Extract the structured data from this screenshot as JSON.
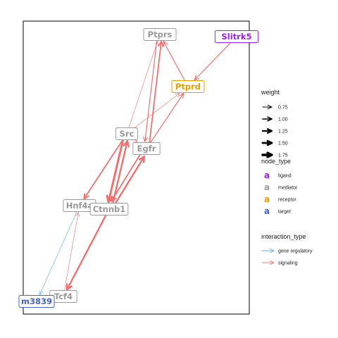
{
  "colors": {
    "ligand": "#A020F0",
    "mediator": "#999999",
    "receptor": "#E69F00",
    "target": "#4763C8",
    "gene_regulatory": "#56A8E0",
    "signaling": "#F07070",
    "panel_border": "#000000"
  },
  "nodes": [
    {
      "id": "Ptprs",
      "label": "Ptprs",
      "type": "mediator"
    },
    {
      "id": "Slitrk5",
      "label": "Slitrk5",
      "type": "ligand"
    },
    {
      "id": "Ptprd",
      "label": "Ptprd",
      "type": "receptor"
    },
    {
      "id": "Src",
      "label": "Src",
      "type": "mediator"
    },
    {
      "id": "Egfr",
      "label": "Egfr",
      "type": "mediator"
    },
    {
      "id": "Hnf4a",
      "label": "Hnf4a",
      "type": "mediator"
    },
    {
      "id": "Ctnnb1",
      "label": "Ctnnb1",
      "type": "mediator"
    },
    {
      "id": "Tcf4",
      "label": "Tcf4",
      "type": "mediator"
    },
    {
      "id": "Gm3839",
      "label": "m3839",
      "type": "target"
    }
  ],
  "edges": [
    {
      "from": "Slitrk5",
      "to": "Ptprd",
      "interaction_type": "signaling",
      "weight": 1.0
    },
    {
      "from": "Ptprd",
      "to": "Ptprs",
      "interaction_type": "signaling",
      "weight": 1.0
    },
    {
      "from": "Src",
      "to": "Ptprs",
      "interaction_type": "signaling",
      "weight": 0.75
    },
    {
      "from": "Egfr",
      "to": "Ptprs",
      "interaction_type": "signaling",
      "weight": 1.25
    },
    {
      "from": "Ptprs",
      "to": "Egfr",
      "interaction_type": "signaling",
      "weight": 1.0
    },
    {
      "from": "Src",
      "to": "Ptprd",
      "interaction_type": "signaling",
      "weight": 0.75
    },
    {
      "from": "Egfr",
      "to": "Ptprd",
      "interaction_type": "signaling",
      "weight": 1.0
    },
    {
      "from": "Src",
      "to": "Egfr",
      "interaction_type": "signaling",
      "weight": 0.75
    },
    {
      "from": "Src",
      "to": "Hnf4a",
      "interaction_type": "signaling",
      "weight": 1.25
    },
    {
      "from": "Src",
      "to": "Ctnnb1",
      "interaction_type": "signaling",
      "weight": 1.75
    },
    {
      "from": "Ctnnb1",
      "to": "Src",
      "interaction_type": "signaling",
      "weight": 1.5
    },
    {
      "from": "Ctnnb1",
      "to": "Egfr",
      "interaction_type": "signaling",
      "weight": 1.5
    },
    {
      "from": "Egfr",
      "to": "Ctnnb1",
      "interaction_type": "signaling",
      "weight": 1.25
    },
    {
      "from": "Ctnnb1",
      "to": "Tcf4",
      "interaction_type": "signaling",
      "weight": 1.5
    },
    {
      "from": "Tcf4",
      "to": "Hnf4a",
      "interaction_type": "signaling",
      "weight": 0.75
    },
    {
      "from": "Hnf4a",
      "to": "Gm3839",
      "interaction_type": "gene_regulatory",
      "weight": 0.75
    }
  ],
  "legend": {
    "weight": {
      "title": "weight",
      "items": [
        {
          "label": "0.75",
          "value": 0.75
        },
        {
          "label": "1.00",
          "value": 1.0
        },
        {
          "label": "1.25",
          "value": 1.25
        },
        {
          "label": "1.50",
          "value": 1.5
        },
        {
          "label": "1.75",
          "value": 1.75
        }
      ]
    },
    "node_type": {
      "title": "node_type",
      "glyph": "a",
      "items": [
        {
          "label": "ligand",
          "type": "ligand"
        },
        {
          "label": "mediator",
          "type": "mediator"
        },
        {
          "label": "receptor",
          "type": "receptor"
        },
        {
          "label": "target",
          "type": "target"
        }
      ]
    },
    "interaction_type": {
      "title": "interaction_type",
      "items": [
        {
          "label": "gene regulatory",
          "type": "gene_regulatory"
        },
        {
          "label": "signaling",
          "type": "signaling"
        }
      ]
    }
  }
}
